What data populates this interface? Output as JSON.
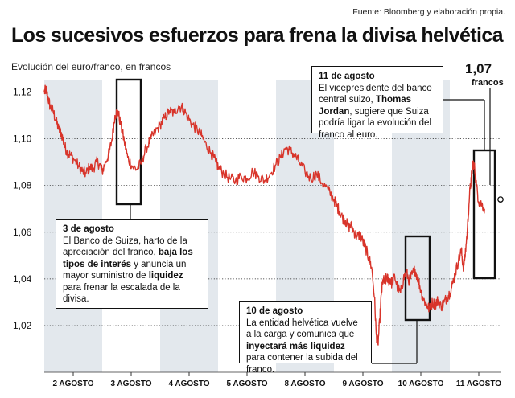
{
  "source": "Fuente: Bloomberg y elaboración propia.",
  "title": "Los sucesivos esfuerzos para frena la divisa helvética",
  "ylabel": "Evolución del euro/franco, en francos",
  "last_value": {
    "value": "1,07",
    "unit": "francos"
  },
  "annotations": [
    {
      "id": "ann-3-agosto",
      "heading": "3 de agosto",
      "parts": [
        {
          "t": "El Banco de Suiza, harto de la apreciación del franco, "
        },
        {
          "t": "baja los tipos de interés",
          "b": true
        },
        {
          "t": " y anuncia un mayor suministro de "
        },
        {
          "t": "liquidez",
          "b": true
        },
        {
          "t": " para frenar la escalada de la divisa."
        }
      ]
    },
    {
      "id": "ann-10-agosto",
      "heading": "10 de agosto",
      "parts": [
        {
          "t": "La entidad helvética vuelve a la carga y comunica que "
        },
        {
          "t": "inyectará más liquidez",
          "b": true
        },
        {
          "t": " para contener la subida del franco."
        }
      ]
    },
    {
      "id": "ann-11-agosto",
      "heading": "11 de agosto",
      "parts": [
        {
          "t": "El vicepresidente del banco central suizo, "
        },
        {
          "t": "Thomas Jordan",
          "b": true
        },
        {
          "t": ", sugiere que Suiza podría ligar la evolución del franco al euro."
        }
      ]
    }
  ],
  "chart_data": {
    "type": "line",
    "categories": [
      "2 AGOSTO",
      "3 AGOSTO",
      "4 AGOSTO",
      "5 AGOSTO",
      "8 AGOSTO",
      "9 AGOSTO",
      "10 AGOSTO",
      "11 AGOSTO"
    ],
    "ylim": [
      1.0,
      1.125
    ],
    "yticks": [
      1.02,
      1.04,
      1.06,
      1.08,
      1.1,
      1.12
    ],
    "ytick_labels": [
      "1,02",
      "1,04",
      "1,06",
      "1,08",
      "1,10",
      "1,12"
    ],
    "grid": true,
    "series": [
      {
        "points": [
          [
            0.0,
            1.12
          ],
          [
            0.03,
            1.121
          ],
          [
            0.06,
            1.118
          ],
          [
            0.1,
            1.114
          ],
          [
            0.15,
            1.112
          ],
          [
            0.2,
            1.108
          ],
          [
            0.25,
            1.104
          ],
          [
            0.3,
            1.102
          ],
          [
            0.35,
            1.097
          ],
          [
            0.4,
            1.094
          ],
          [
            0.45,
            1.093
          ],
          [
            0.52,
            1.091
          ],
          [
            0.6,
            1.088
          ],
          [
            0.66,
            1.086
          ],
          [
            0.72,
            1.085
          ],
          [
            0.78,
            1.088
          ],
          [
            0.84,
            1.087
          ],
          [
            0.9,
            1.09
          ],
          [
            0.96,
            1.089
          ],
          [
            1.0,
            1.086
          ],
          [
            1.06,
            1.09
          ],
          [
            1.12,
            1.094
          ],
          [
            1.17,
            1.1
          ],
          [
            1.22,
            1.11
          ],
          [
            1.27,
            1.112
          ],
          [
            1.32,
            1.106
          ],
          [
            1.38,
            1.099
          ],
          [
            1.44,
            1.092
          ],
          [
            1.52,
            1.088
          ],
          [
            1.6,
            1.087
          ],
          [
            1.68,
            1.09
          ],
          [
            1.76,
            1.096
          ],
          [
            1.84,
            1.1
          ],
          [
            1.92,
            1.103
          ],
          [
            2.0,
            1.106
          ],
          [
            2.08,
            1.109
          ],
          [
            2.16,
            1.112
          ],
          [
            2.24,
            1.111
          ],
          [
            2.32,
            1.114
          ],
          [
            2.4,
            1.113
          ],
          [
            2.48,
            1.109
          ],
          [
            2.56,
            1.106
          ],
          [
            2.64,
            1.104
          ],
          [
            2.72,
            1.101
          ],
          [
            2.8,
            1.097
          ],
          [
            2.88,
            1.094
          ],
          [
            2.96,
            1.09
          ],
          [
            3.0,
            1.088
          ],
          [
            3.1,
            1.085
          ],
          [
            3.2,
            1.083
          ],
          [
            3.3,
            1.082
          ],
          [
            3.4,
            1.084
          ],
          [
            3.5,
            1.083
          ],
          [
            3.6,
            1.086
          ],
          [
            3.7,
            1.084
          ],
          [
            3.8,
            1.082
          ],
          [
            3.9,
            1.085
          ],
          [
            4.0,
            1.089
          ],
          [
            4.08,
            1.092
          ],
          [
            4.16,
            1.096
          ],
          [
            4.24,
            1.095
          ],
          [
            4.32,
            1.093
          ],
          [
            4.4,
            1.09
          ],
          [
            4.5,
            1.086
          ],
          [
            4.6,
            1.083
          ],
          [
            4.7,
            1.085
          ],
          [
            4.8,
            1.081
          ],
          [
            4.9,
            1.078
          ],
          [
            5.0,
            1.074
          ],
          [
            5.05,
            1.071
          ],
          [
            5.1,
            1.069
          ],
          [
            5.15,
            1.066
          ],
          [
            5.2,
            1.065
          ],
          [
            5.25,
            1.062
          ],
          [
            5.3,
            1.063
          ],
          [
            5.35,
            1.06
          ],
          [
            5.4,
            1.058
          ],
          [
            5.45,
            1.059
          ],
          [
            5.5,
            1.056
          ],
          [
            5.55,
            1.053
          ],
          [
            5.6,
            1.049
          ],
          [
            5.65,
            1.045
          ],
          [
            5.7,
            1.032
          ],
          [
            5.73,
            1.016
          ],
          [
            5.76,
            1.012
          ],
          [
            5.79,
            1.022
          ],
          [
            5.82,
            1.034
          ],
          [
            5.85,
            1.04
          ],
          [
            5.88,
            1.038
          ],
          [
            5.91,
            1.041
          ],
          [
            5.94,
            1.039
          ],
          [
            5.97,
            1.04
          ],
          [
            6.0,
            1.038
          ],
          [
            6.05,
            1.041
          ],
          [
            6.1,
            1.036
          ],
          [
            6.15,
            1.034
          ],
          [
            6.2,
            1.04
          ],
          [
            6.25,
            1.043
          ],
          [
            6.3,
            1.039
          ],
          [
            6.35,
            1.042
          ],
          [
            6.4,
            1.044
          ],
          [
            6.45,
            1.04
          ],
          [
            6.5,
            1.035
          ],
          [
            6.55,
            1.031
          ],
          [
            6.6,
            1.029
          ],
          [
            6.65,
            1.027
          ],
          [
            6.7,
            1.03
          ],
          [
            6.75,
            1.029
          ],
          [
            6.8,
            1.031
          ],
          [
            6.85,
            1.028
          ],
          [
            6.9,
            1.03
          ],
          [
            6.95,
            1.032
          ],
          [
            7.0,
            1.034
          ],
          [
            7.05,
            1.038
          ],
          [
            7.1,
            1.043
          ],
          [
            7.15,
            1.048
          ],
          [
            7.2,
            1.052
          ],
          [
            7.23,
            1.045
          ],
          [
            7.26,
            1.049
          ],
          [
            7.3,
            1.06
          ],
          [
            7.34,
            1.076
          ],
          [
            7.37,
            1.083
          ],
          [
            7.4,
            1.09
          ],
          [
            7.43,
            1.087
          ],
          [
            7.46,
            1.08
          ],
          [
            7.5,
            1.073
          ],
          [
            7.55,
            1.072
          ],
          [
            7.6,
            1.07
          ]
        ]
      }
    ]
  }
}
